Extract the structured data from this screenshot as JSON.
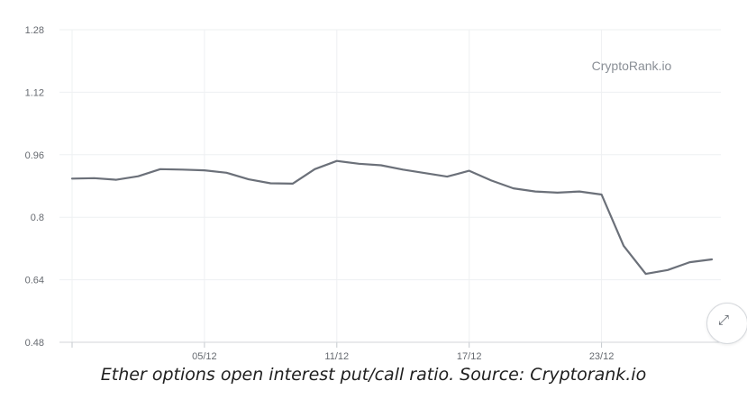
{
  "chart_data": {
    "type": "line",
    "watermark": "CryptoRank.io",
    "caption": "Ether options open interest put/call ratio. Source: Cryptorank.io",
    "ylim": [
      0.48,
      1.28
    ],
    "yticks": [
      1.28,
      1.12,
      0.96,
      0.8,
      0.64,
      0.48
    ],
    "ytick_labels": [
      "1.28",
      "1.12",
      "0.96",
      "0.8",
      "0.64",
      "0.48"
    ],
    "x_day_range": [
      29,
      58
    ],
    "xticks": [
      {
        "day": 35,
        "label": "05/12"
      },
      {
        "day": 41,
        "label": "11/12"
      },
      {
        "day": 47,
        "label": "17/12"
      },
      {
        "day": 53,
        "label": "23/12"
      }
    ],
    "grid": true,
    "line_color": "#6b7079",
    "series": [
      {
        "x": [
          29,
          30,
          31,
          32,
          33,
          34,
          35,
          36,
          37,
          38,
          39,
          40,
          41,
          42,
          43,
          44,
          45,
          46,
          47,
          48,
          49,
          50,
          51,
          52,
          53,
          54,
          55,
          56,
          57,
          58
        ],
        "values": [
          0.899,
          0.9,
          0.896,
          0.905,
          0.923,
          0.922,
          0.92,
          0.914,
          0.897,
          0.887,
          0.886,
          0.923,
          0.944,
          0.937,
          0.933,
          0.922,
          0.913,
          0.904,
          0.919,
          0.894,
          0.874,
          0.866,
          0.863,
          0.866,
          0.858,
          0.727,
          0.655,
          0.665,
          0.685,
          0.692
        ]
      }
    ]
  },
  "corner_button_icon": "expand-arrow-icon"
}
